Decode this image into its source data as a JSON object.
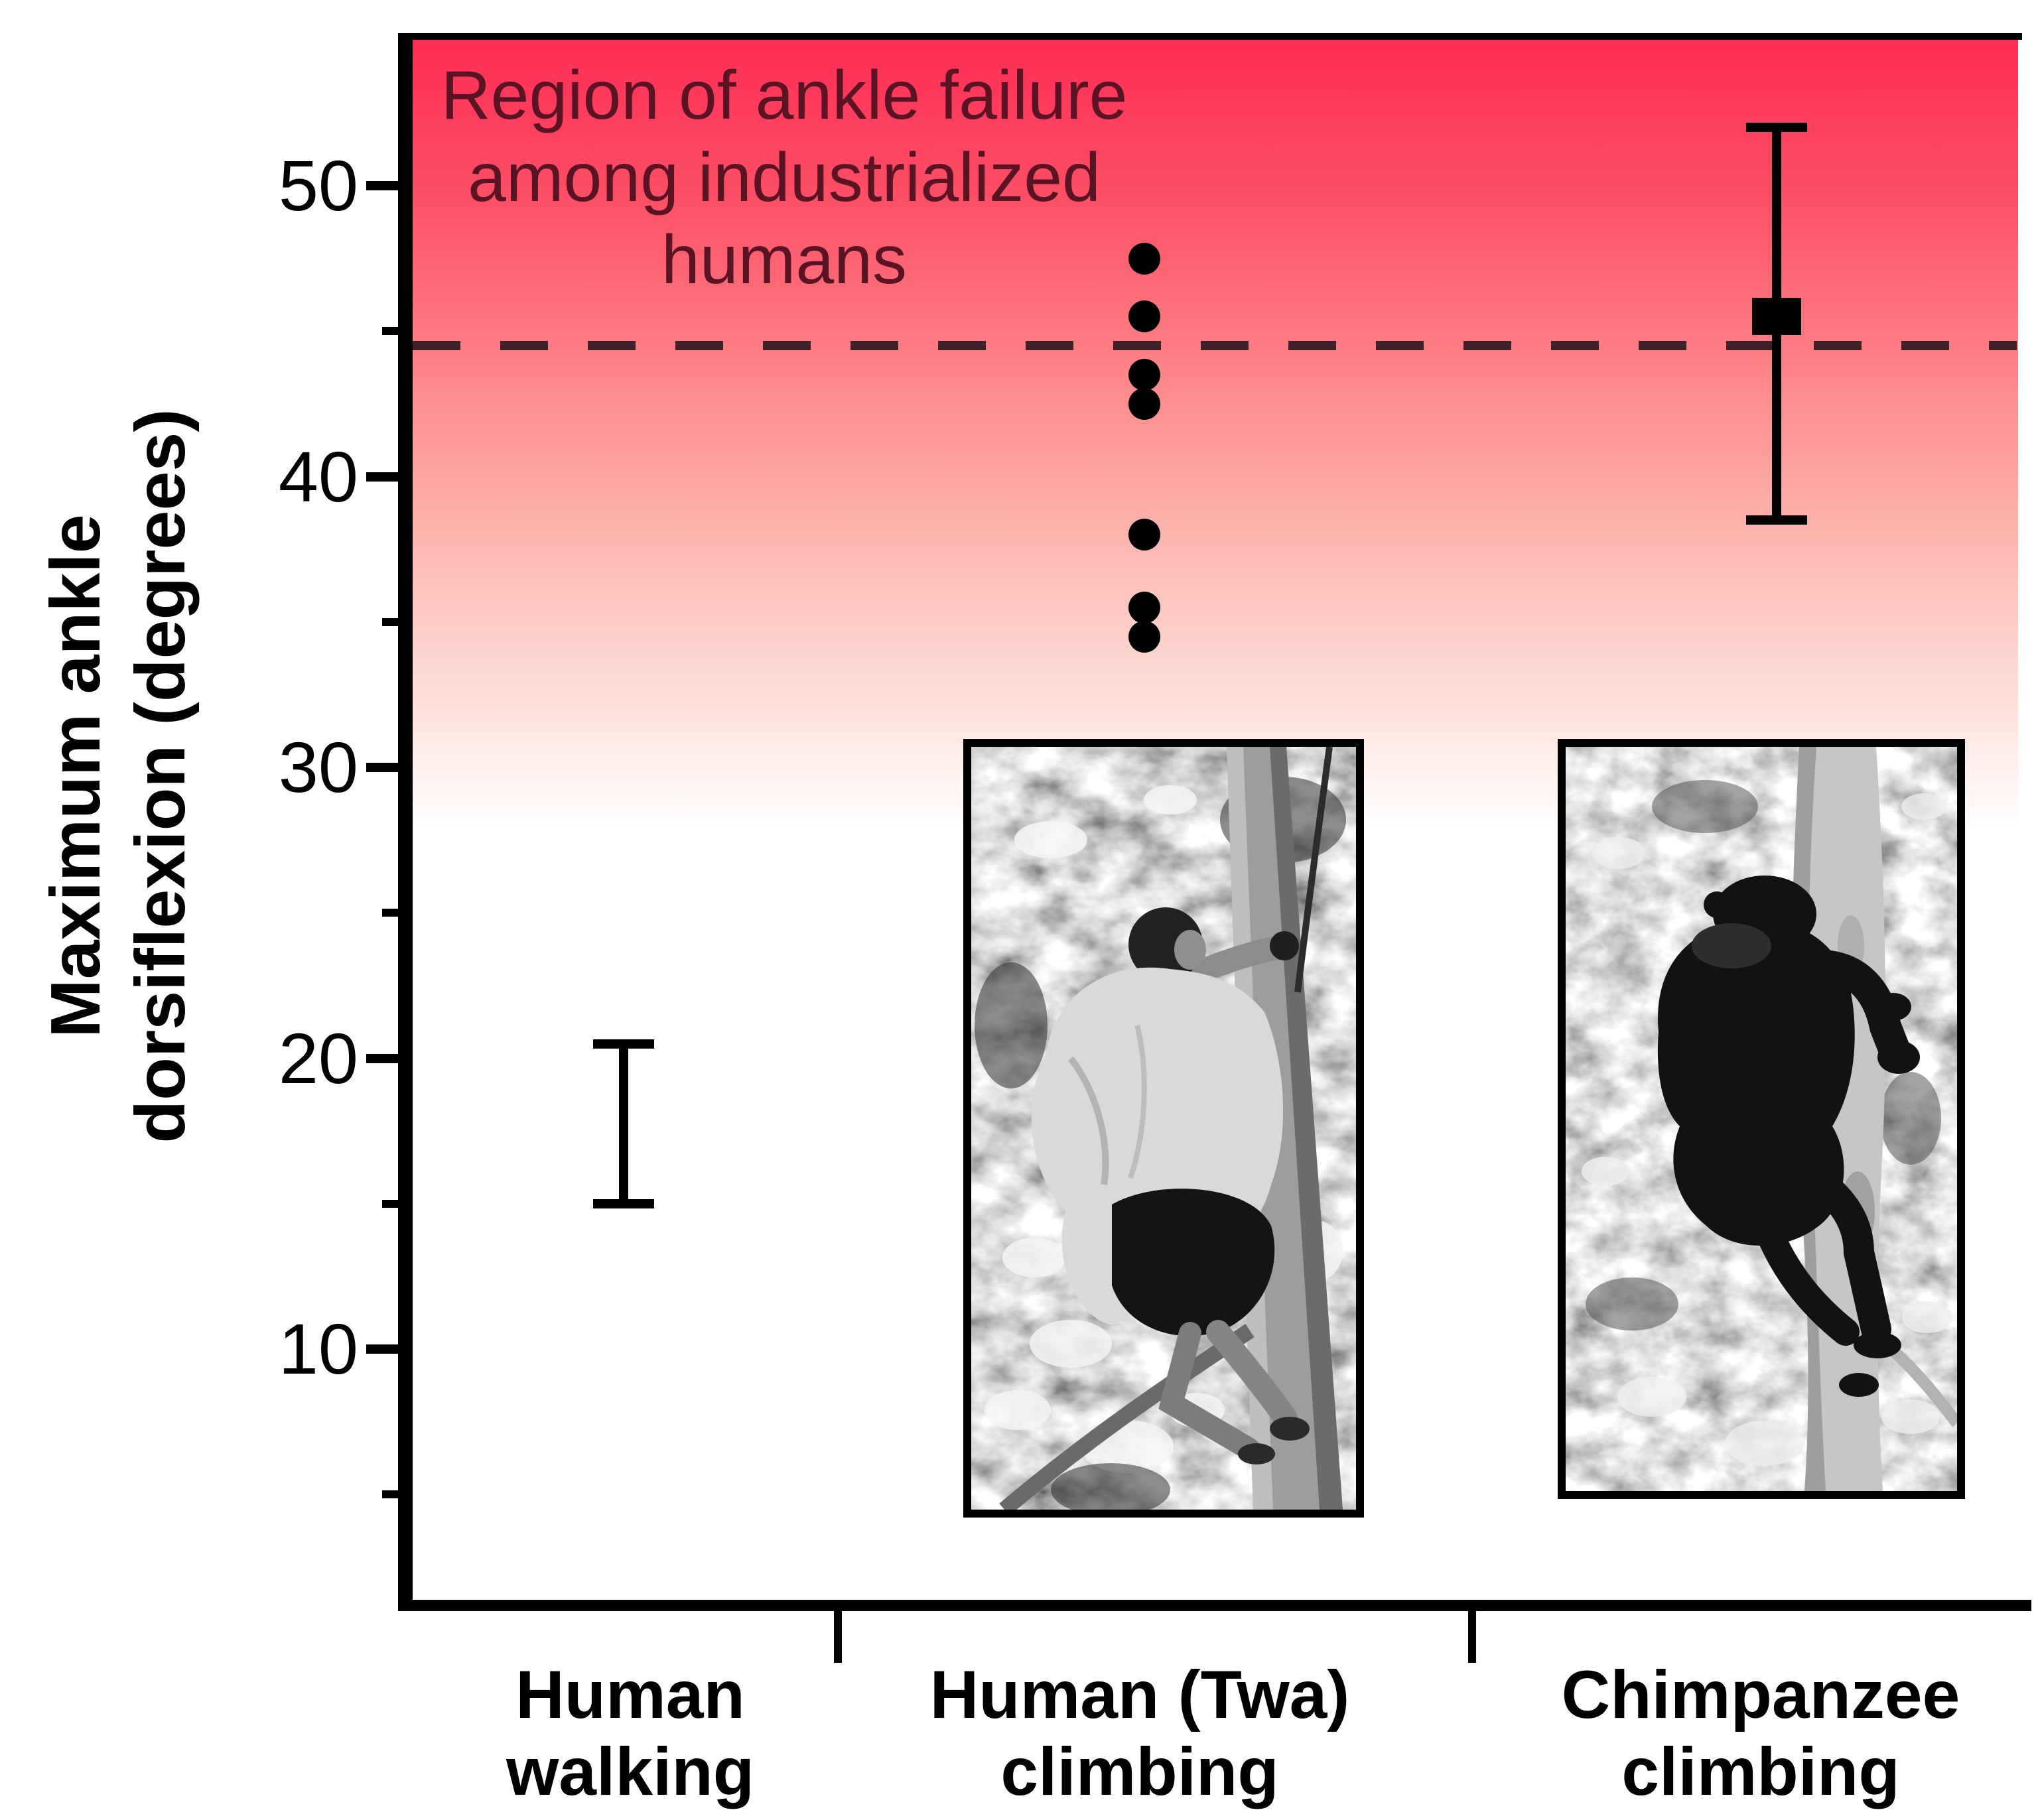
{
  "figure": {
    "annotation": {
      "lines": [
        "Region of ankle failure",
        "among industrialized",
        "humans"
      ]
    },
    "y_axis": {
      "title_lines": [
        "Maximum ankle",
        "dorsiflexion (degrees)"
      ],
      "ticks": [
        {
          "label": "50",
          "value": 50
        },
        {
          "label": "40",
          "value": 40
        },
        {
          "label": "30",
          "value": 30
        },
        {
          "label": "20",
          "value": 20
        },
        {
          "label": "10",
          "value": 10
        }
      ],
      "minor_tick_values": [
        45,
        35,
        25,
        15,
        5
      ]
    },
    "x_axis": {
      "categories": [
        {
          "id": "human-walking",
          "lines": [
            "Human",
            "walking"
          ]
        },
        {
          "id": "human-twa-climbing",
          "lines": [
            "Human (Twa)",
            "climbing"
          ]
        },
        {
          "id": "chimpanzee-climbing",
          "lines": [
            "Chimpanzee",
            "climbing"
          ]
        }
      ]
    },
    "photos": [
      {
        "id": "twa-climbing-photo",
        "depicts": "Black-and-white photograph of a Twa man climbing a tree trunk"
      },
      {
        "id": "chimpanzee-climbing-photo",
        "depicts": "Black-and-white photograph of a chimpanzee climbing a tree trunk"
      }
    ],
    "colors": {
      "failure_region_top": "#fe2d55",
      "failure_region_mid": "#fd7d82",
      "failure_region_fade": "#ffffff",
      "annotation_text": "#5a1322",
      "dashed_line": "#3f2229",
      "axis_and_marks": "#000000"
    }
  },
  "chart_data": {
    "type": "scatter",
    "title": "",
    "xlabel": "",
    "ylabel": "Maximum ankle dorsiflexion (degrees)",
    "ylim": [
      0,
      55
    ],
    "yticks": [
      10,
      20,
      30,
      40,
      50
    ],
    "minor_yticks": [
      5,
      15,
      25,
      35,
      45
    ],
    "grid": false,
    "legend": "none",
    "categories": [
      "Human walking",
      "Human (Twa) climbing",
      "Chimpanzee climbing"
    ],
    "reference_line": {
      "style": "dashed",
      "value": 44.5
    },
    "failure_region": {
      "label": "Region of ankle failure among industrialized humans",
      "top": 55,
      "fades_out_at": 30
    },
    "series": [
      {
        "name": "Human walking",
        "marker": "range-bar",
        "min": 15,
        "max": 20.5
      },
      {
        "name": "Human (Twa) climbing",
        "marker": "dot",
        "values": [
          47.5,
          45.5,
          43.5,
          42.5,
          38,
          35.5,
          34.5
        ]
      },
      {
        "name": "Chimpanzee climbing",
        "marker": "square-with-error-bar",
        "mean": 45.5,
        "upper": 52,
        "lower": 38.5
      }
    ]
  }
}
